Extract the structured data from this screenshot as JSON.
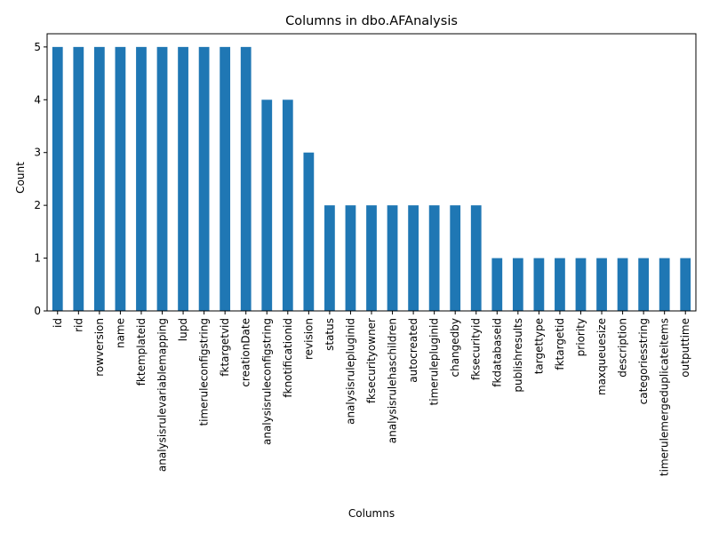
{
  "chart_data": {
    "type": "bar",
    "title": "Columns in dbo.AFAnalysis",
    "xlabel": "Columns",
    "ylabel": "Count",
    "ylim": [
      0,
      5
    ],
    "yticks": [
      0,
      1,
      2,
      3,
      4,
      5
    ],
    "bar_color": "#1f77b4",
    "grid": false,
    "legend": "none",
    "categories": [
      "id",
      "rid",
      "rowversion",
      "name",
      "fktemplateid",
      "analysisrulevariablemapping",
      "lupd",
      "timeruleconfigstring",
      "fktargetvid",
      "creationDate",
      "analysisruleconfigstring",
      "fknotificationid",
      "revision",
      "status",
      "analysisrulepluginid",
      "fksecurityowner",
      "analysisrulehaschildren",
      "autocreated",
      "timerulepluginid",
      "changedby",
      "fksecurityid",
      "fkdatabaseid",
      "publishresults",
      "targettype",
      "fktargetid",
      "priority",
      "maxqueuesize",
      "description",
      "categoriesstring",
      "timerulemergeduplicateitems",
      "outputtime"
    ],
    "values": [
      5,
      5,
      5,
      5,
      5,
      5,
      5,
      5,
      5,
      5,
      4,
      4,
      3,
      2,
      2,
      2,
      2,
      2,
      2,
      2,
      2,
      1,
      1,
      1,
      1,
      1,
      1,
      1,
      1,
      1,
      1
    ]
  }
}
